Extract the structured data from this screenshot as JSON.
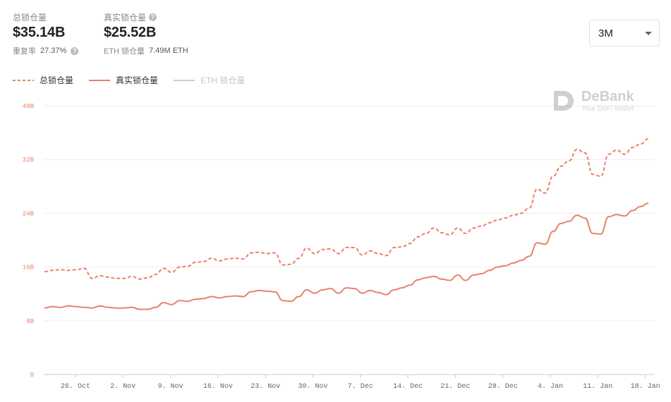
{
  "stats": {
    "total": {
      "label": "总锁仓量",
      "value": "$35.14B",
      "sub_label": "重复率",
      "sub_value": "27.37%"
    },
    "real": {
      "label": "真实锁仓量",
      "value": "$25.52B",
      "sub_label": "ETH 锁仓量",
      "sub_value": "7.49M ETH"
    }
  },
  "range_select": {
    "value": "3M"
  },
  "legend": [
    {
      "label": "总锁仓量",
      "style": "dashed",
      "color": "#e8826a",
      "active": true
    },
    {
      "label": "真实锁仓量",
      "style": "solid",
      "color": "#e8826a",
      "active": true
    },
    {
      "label": "ETH 锁仓量",
      "style": "solid",
      "color": "#cccccc",
      "active": false
    }
  ],
  "watermark": {
    "brand": "DeBank",
    "tagline": "Your DeFi Wallet"
  },
  "chart_data": {
    "type": "line",
    "x_tick_labels": [
      "26. Oct",
      "2. Nov",
      "9. Nov",
      "16. Nov",
      "23. Nov",
      "30. Nov",
      "7. Dec",
      "14. Dec",
      "21. Dec",
      "28. Dec",
      "4. Jan",
      "11. Jan",
      "18. Jan"
    ],
    "y_tick_labels": [
      "0",
      "8B",
      "16B",
      "24B",
      "32B",
      "40B"
    ],
    "ylim": [
      0,
      40
    ],
    "y_unit": "B",
    "grid": true,
    "series": [
      {
        "name": "总锁仓量",
        "style": "dashed",
        "color": "#e8826a",
        "values": [
          15.3,
          15.5,
          15.6,
          15.5,
          15.6,
          15.8,
          14.3,
          14.7,
          14.5,
          14.3,
          14.3,
          14.6,
          14.2,
          14.4,
          14.9,
          15.8,
          15.2,
          16.0,
          16.1,
          16.7,
          16.8,
          17.3,
          16.9,
          17.2,
          17.3,
          17.2,
          18.1,
          18.2,
          18.0,
          18.1,
          16.3,
          16.4,
          17.3,
          18.8,
          18.0,
          18.6,
          18.7,
          18.0,
          18.9,
          18.9,
          17.8,
          18.4,
          18.0,
          17.7,
          18.9,
          19.0,
          19.5,
          20.5,
          21.0,
          21.8,
          21.1,
          20.8,
          21.8,
          21.0,
          21.8,
          22.1,
          22.6,
          23.0,
          23.3,
          23.7,
          24.0,
          24.8,
          27.6,
          27.0,
          29.5,
          31.0,
          31.8,
          33.5,
          33.0,
          29.8,
          29.5,
          32.8,
          33.4,
          32.8,
          33.8,
          34.3,
          35.1
        ]
      },
      {
        "name": "真实锁仓量",
        "style": "solid",
        "color": "#e8826a",
        "values": [
          9.9,
          10.1,
          10.0,
          10.2,
          10.1,
          10.0,
          9.9,
          10.2,
          10.0,
          9.9,
          9.9,
          10.0,
          9.7,
          9.7,
          10.0,
          10.7,
          10.4,
          11.0,
          10.9,
          11.2,
          11.3,
          11.6,
          11.4,
          11.6,
          11.7,
          11.6,
          12.3,
          12.5,
          12.4,
          12.3,
          11.0,
          10.9,
          11.6,
          12.6,
          12.1,
          12.6,
          12.8,
          12.1,
          12.9,
          12.8,
          12.1,
          12.5,
          12.2,
          11.9,
          12.6,
          12.9,
          13.3,
          14.1,
          14.4,
          14.6,
          14.2,
          14.0,
          14.8,
          14.0,
          14.8,
          15.0,
          15.5,
          16.0,
          16.2,
          16.6,
          17.0,
          17.6,
          19.6,
          19.4,
          21.3,
          22.5,
          22.8,
          23.7,
          23.3,
          21.0,
          20.9,
          23.5,
          23.8,
          23.6,
          24.4,
          25.0,
          25.5
        ]
      }
    ]
  }
}
